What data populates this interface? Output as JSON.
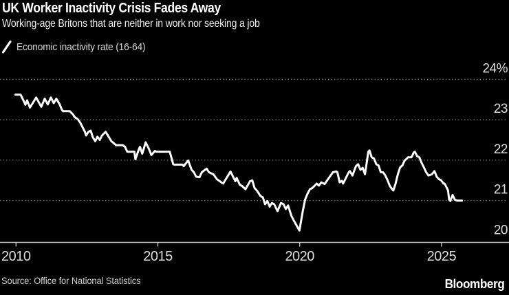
{
  "header": {
    "title": "UK Worker Inactivity Crisis Fades Away",
    "subtitle": "Working-age Britons that are neither in work nor seeking a job"
  },
  "legend": {
    "label": "Economic inactivity rate (16-64)",
    "marker": "diagonal-line-icon",
    "marker_color": "#ffffff"
  },
  "chart_data": {
    "type": "line",
    "title": "UK Worker Inactivity Crisis Fades Away",
    "series_name": "Economic inactivity rate (16-64)",
    "unit": "%",
    "grid": "dotted-horizontal",
    "legend_position": "top-left",
    "line_color": "#ffffff",
    "xlim": [
      2009.95,
      2025.95
    ],
    "ylim": [
      20,
      24
    ],
    "x_ticks": [
      "2010",
      "2015",
      "2020",
      "2025"
    ],
    "x_tick_years": [
      2010,
      2015,
      2020,
      2025
    ],
    "y_ticks": [
      {
        "value": 24,
        "label": "24%"
      },
      {
        "value": 23,
        "label": "23"
      },
      {
        "value": 22,
        "label": "22"
      },
      {
        "value": 21,
        "label": "21"
      },
      {
        "value": 20,
        "label": "20"
      }
    ],
    "points": [
      [
        2009.98,
        23.62
      ],
      [
        2010.16,
        23.62
      ],
      [
        2010.26,
        23.48
      ],
      [
        2010.33,
        23.37
      ],
      [
        2010.39,
        23.48
      ],
      [
        2010.49,
        23.3
      ],
      [
        2010.71,
        23.55
      ],
      [
        2010.89,
        23.32
      ],
      [
        2011.01,
        23.52
      ],
      [
        2011.12,
        23.38
      ],
      [
        2011.23,
        23.55
      ],
      [
        2011.33,
        23.41
      ],
      [
        2011.42,
        23.52
      ],
      [
        2011.54,
        23.38
      ],
      [
        2011.62,
        23.24
      ],
      [
        2011.66,
        23.21
      ],
      [
        2011.9,
        23.21
      ],
      [
        2012.02,
        23.12
      ],
      [
        2012.06,
        23.07
      ],
      [
        2012.18,
        23.01
      ],
      [
        2012.27,
        22.92
      ],
      [
        2012.35,
        22.81
      ],
      [
        2012.43,
        22.7
      ],
      [
        2012.47,
        22.61
      ],
      [
        2012.55,
        22.7
      ],
      [
        2012.63,
        22.73
      ],
      [
        2012.71,
        22.56
      ],
      [
        2012.79,
        22.47
      ],
      [
        2012.87,
        22.58
      ],
      [
        2012.95,
        22.5
      ],
      [
        2013.03,
        22.61
      ],
      [
        2013.16,
        22.7
      ],
      [
        2013.36,
        22.47
      ],
      [
        2013.48,
        22.4
      ],
      [
        2013.52,
        22.37
      ],
      [
        2013.76,
        22.37
      ],
      [
        2013.84,
        22.33
      ],
      [
        2013.92,
        22.21
      ],
      [
        2014.17,
        22.21
      ],
      [
        2014.21,
        22.02
      ],
      [
        2014.33,
        22.27
      ],
      [
        2014.37,
        22.33
      ],
      [
        2014.45,
        22.16
      ],
      [
        2014.57,
        22.44
      ],
      [
        2014.69,
        22.27
      ],
      [
        2014.77,
        22.13
      ],
      [
        2014.9,
        22.23
      ],
      [
        2014.94,
        22.21
      ],
      [
        2015.42,
        22.21
      ],
      [
        2015.54,
        21.9
      ],
      [
        2015.58,
        21.89
      ],
      [
        2015.87,
        21.89
      ],
      [
        2015.91,
        21.85
      ],
      [
        2016.03,
        21.96
      ],
      [
        2016.07,
        21.99
      ],
      [
        2016.19,
        21.76
      ],
      [
        2016.27,
        21.7
      ],
      [
        2016.35,
        21.59
      ],
      [
        2016.47,
        21.58
      ],
      [
        2016.55,
        21.7
      ],
      [
        2016.72,
        21.79
      ],
      [
        2016.8,
        21.7
      ],
      [
        2016.96,
        21.65
      ],
      [
        2017.08,
        21.53
      ],
      [
        2017.24,
        21.45
      ],
      [
        2017.3,
        21.42
      ],
      [
        2017.56,
        21.72
      ],
      [
        2017.73,
        21.48
      ],
      [
        2017.78,
        21.56
      ],
      [
        2017.89,
        21.39
      ],
      [
        2017.97,
        21.36
      ],
      [
        2018.09,
        21.28
      ],
      [
        2018.25,
        21.48
      ],
      [
        2018.33,
        21.5
      ],
      [
        2018.41,
        21.31
      ],
      [
        2018.49,
        21.25
      ],
      [
        2018.62,
        21.11
      ],
      [
        2018.7,
        21.08
      ],
      [
        2018.78,
        20.91
      ],
      [
        2018.86,
        20.99
      ],
      [
        2018.94,
        20.85
      ],
      [
        2019.02,
        20.94
      ],
      [
        2019.1,
        20.91
      ],
      [
        2019.22,
        20.74
      ],
      [
        2019.34,
        20.94
      ],
      [
        2019.43,
        20.91
      ],
      [
        2019.51,
        20.79
      ],
      [
        2019.59,
        20.88
      ],
      [
        2019.71,
        20.62
      ],
      [
        2019.79,
        20.51
      ],
      [
        2019.99,
        20.26
      ],
      [
        2020.11,
        20.74
      ],
      [
        2020.19,
        21.02
      ],
      [
        2020.27,
        21.16
      ],
      [
        2020.36,
        21.28
      ],
      [
        2020.44,
        21.31
      ],
      [
        2020.52,
        21.36
      ],
      [
        2020.6,
        21.42
      ],
      [
        2020.68,
        21.37
      ],
      [
        2020.76,
        21.45
      ],
      [
        2020.88,
        21.41
      ],
      [
        2021.0,
        21.53
      ],
      [
        2021.17,
        21.7
      ],
      [
        2021.29,
        21.72
      ],
      [
        2021.33,
        21.7
      ],
      [
        2021.41,
        21.45
      ],
      [
        2021.49,
        21.49
      ],
      [
        2021.53,
        21.42
      ],
      [
        2021.73,
        21.7
      ],
      [
        2021.77,
        21.73
      ],
      [
        2021.86,
        21.62
      ],
      [
        2021.98,
        21.85
      ],
      [
        2022.06,
        21.9
      ],
      [
        2022.14,
        21.76
      ],
      [
        2022.22,
        21.81
      ],
      [
        2022.3,
        21.65
      ],
      [
        2022.42,
        22.21
      ],
      [
        2022.46,
        22.24
      ],
      [
        2022.54,
        22.07
      ],
      [
        2022.62,
        22.04
      ],
      [
        2022.7,
        21.9
      ],
      [
        2022.78,
        21.87
      ],
      [
        2022.86,
        21.7
      ],
      [
        2022.94,
        21.7
      ],
      [
        2023.02,
        21.62
      ],
      [
        2023.1,
        21.5
      ],
      [
        2023.18,
        21.36
      ],
      [
        2023.26,
        21.28
      ],
      [
        2023.3,
        21.25
      ],
      [
        2023.38,
        21.42
      ],
      [
        2023.46,
        21.65
      ],
      [
        2023.54,
        21.82
      ],
      [
        2023.62,
        21.87
      ],
      [
        2023.7,
        21.99
      ],
      [
        2023.78,
        22.04
      ],
      [
        2023.82,
        22.07
      ],
      [
        2023.94,
        22.07
      ],
      [
        2024.02,
        22.19
      ],
      [
        2024.06,
        22.21
      ],
      [
        2024.14,
        22.1
      ],
      [
        2024.22,
        22.07
      ],
      [
        2024.3,
        21.93
      ],
      [
        2024.38,
        21.82
      ],
      [
        2024.46,
        21.7
      ],
      [
        2024.54,
        21.62
      ],
      [
        2024.66,
        21.65
      ],
      [
        2024.75,
        21.73
      ],
      [
        2024.83,
        21.59
      ],
      [
        2024.91,
        21.53
      ],
      [
        2024.99,
        21.5
      ],
      [
        2025.07,
        21.42
      ],
      [
        2025.11,
        21.42
      ],
      [
        2025.19,
        21.31
      ],
      [
        2025.23,
        21.25
      ],
      [
        2025.27,
        21.02
      ],
      [
        2025.31,
        20.99
      ],
      [
        2025.39,
        21.14
      ],
      [
        2025.47,
        21.02
      ],
      [
        2025.55,
        21.0
      ],
      [
        2025.72,
        21.0
      ]
    ]
  },
  "footer": {
    "source": "Source: Office for National Statistics",
    "brand": "Bloomberg"
  },
  "colors": {
    "background": "#000000",
    "line": "#ffffff",
    "gridline": "#7d7d7d",
    "axis": "#c9c9c9",
    "tick_label": "#dcdcdc",
    "text_primary": "#ffffff",
    "text_secondary": "#d8d8d8"
  }
}
